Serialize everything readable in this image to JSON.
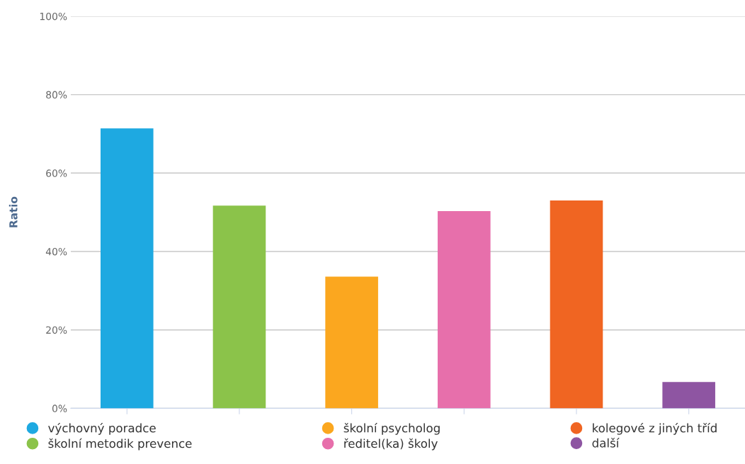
{
  "chart_data": {
    "type": "bar",
    "ylabel": "Ratio",
    "categories": [
      null,
      null,
      null,
      null,
      null,
      null
    ],
    "series": [
      {
        "name": "výchovný poradce",
        "color": "#1ea9e1",
        "values": [
          71.4,
          null,
          null,
          null,
          null,
          null
        ]
      },
      {
        "name": "školní metodik prevence",
        "color": "#8bc34a",
        "values": [
          null,
          51.7,
          null,
          null,
          null,
          null
        ]
      },
      {
        "name": "školní psycholog",
        "color": "#fba71f",
        "values": [
          null,
          null,
          33.6,
          null,
          null,
          null
        ]
      },
      {
        "name": "ředitel(ka) školy",
        "color": "#e76fab",
        "values": [
          null,
          null,
          null,
          50.3,
          null,
          null
        ]
      },
      {
        "name": "kolegové z jiných tříd",
        "color": "#f06522",
        "values": [
          null,
          null,
          null,
          null,
          53.0,
          null
        ]
      },
      {
        "name": "další",
        "color": "#8e55a2",
        "values": [
          null,
          null,
          null,
          null,
          null,
          6.7
        ]
      }
    ],
    "ylim": [
      0,
      100
    ],
    "yticks": [
      {
        "value": 0,
        "label": "0%"
      },
      {
        "value": 20,
        "label": "20%"
      },
      {
        "value": 40,
        "label": "40%"
      },
      {
        "value": 60,
        "label": "60%"
      },
      {
        "value": 80,
        "label": "80%"
      },
      {
        "value": 100,
        "label": "100%"
      }
    ],
    "grid": "y",
    "legend": "bottom"
  }
}
